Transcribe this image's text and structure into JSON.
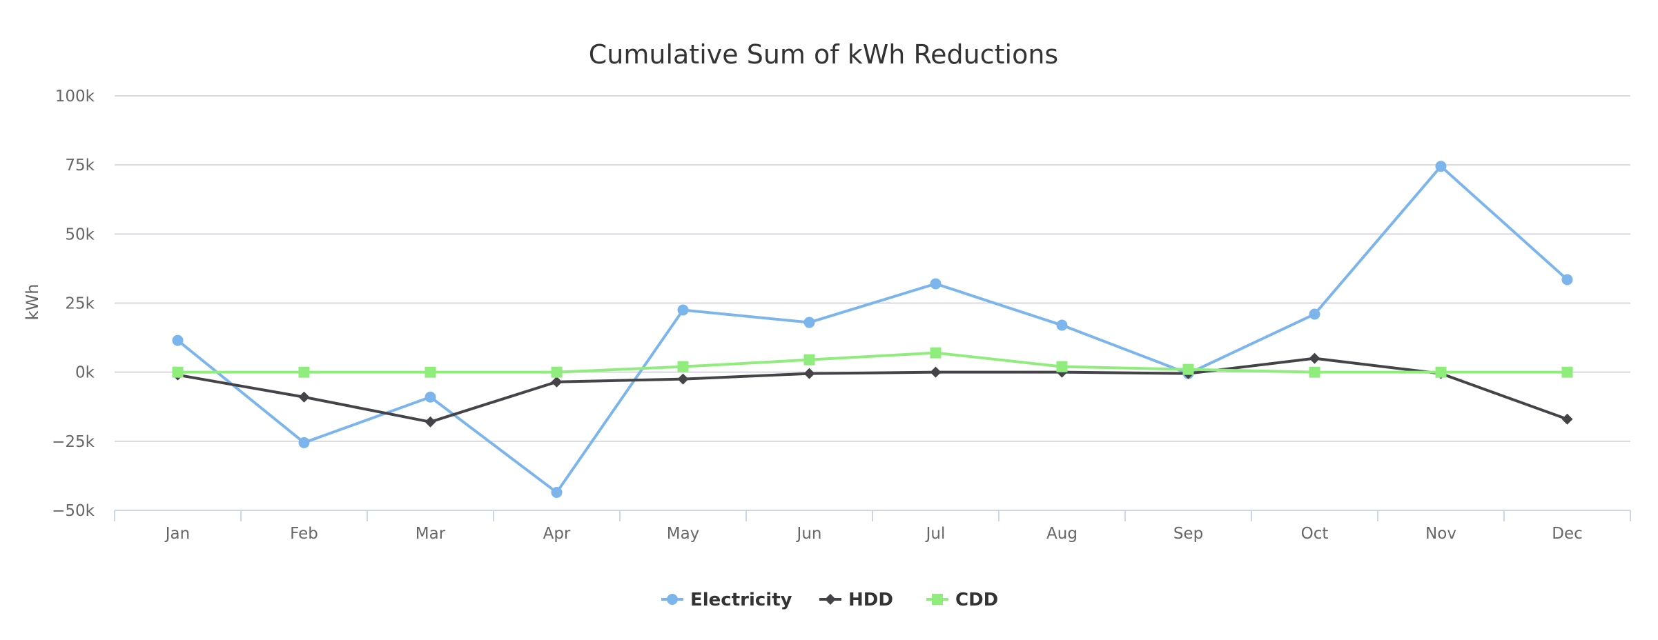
{
  "chart_data": {
    "type": "line",
    "title": "Cumulative Sum of kWh Reductions",
    "xlabel": "",
    "ylabel": "kWh",
    "categories": [
      "Jan",
      "Feb",
      "Mar",
      "Apr",
      "May",
      "Jun",
      "Jul",
      "Aug",
      "Sep",
      "Oct",
      "Nov",
      "Dec"
    ],
    "ylim": [
      -50000,
      100000
    ],
    "yticks": [
      -50000,
      -25000,
      0,
      25000,
      50000,
      75000,
      100000
    ],
    "ytick_labels": [
      "−50k",
      "−25k",
      "0k",
      "25k",
      "50k",
      "75k",
      "100k"
    ],
    "grid": true,
    "legend_position": "bottom-center",
    "series": [
      {
        "name": "Electricity",
        "color": "#7cb5ec",
        "marker": "circle",
        "values": [
          11500,
          -25500,
          -9000,
          -43500,
          22500,
          18000,
          32000,
          17000,
          -500,
          21000,
          74500,
          33500
        ]
      },
      {
        "name": "HDD",
        "color": "#434348",
        "marker": "diamond",
        "values": [
          -1000,
          -9000,
          -18000,
          -3500,
          -2500,
          -500,
          0,
          0,
          -500,
          5000,
          -500,
          -17000
        ]
      },
      {
        "name": "CDD",
        "color": "#90ed7d",
        "marker": "square",
        "values": [
          0,
          0,
          0,
          0,
          2000,
          4500,
          7000,
          2000,
          1000,
          0,
          0,
          0
        ]
      }
    ]
  }
}
